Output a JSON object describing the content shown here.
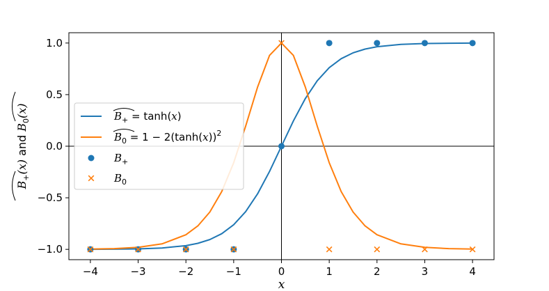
{
  "chart_data": {
    "type": "line",
    "xlabel": "x",
    "ylabel": "B_+(x) and B_0(x)",
    "ylabel_parts": {
      "a": "B",
      "a_sub": "+",
      "a_arg": "(x)",
      "mid": " and ",
      "b": "B",
      "b_sub": "0",
      "b_arg": "(x)"
    },
    "xlim": [
      -4.45,
      4.45
    ],
    "ylim": [
      -1.1,
      1.1
    ],
    "xticks": [
      -4,
      -3,
      -2,
      -1,
      0,
      1,
      2,
      3,
      4
    ],
    "xtick_labels": [
      "−4",
      "−3",
      "−2",
      "−1",
      "0",
      "1",
      "2",
      "3",
      "4"
    ],
    "yticks": [
      -1.0,
      -0.5,
      0.0,
      0.5,
      1.0
    ],
    "ytick_labels": [
      "−1.0",
      "−0.5",
      "0.0",
      "0.5",
      "1.0"
    ],
    "grid": false,
    "reference_lines": {
      "x": 0,
      "y": 0
    },
    "legend_position": "center-left",
    "series": [
      {
        "name": "B_+ hat = tanh(x)",
        "kind": "line",
        "color": "#1f77b4",
        "legend": {
          "sym": "B",
          "sub": "+",
          "rhs": " = tanh(",
          "var": "x",
          "close": ")"
        },
        "x": [
          -4,
          -3.5,
          -3,
          -2.5,
          -2,
          -1.75,
          -1.5,
          -1.25,
          -1,
          -0.75,
          -0.5,
          -0.25,
          0,
          0.25,
          0.5,
          0.75,
          1,
          1.25,
          1.5,
          1.75,
          2,
          2.5,
          3,
          3.5,
          4
        ],
        "y": [
          -0.9993,
          -0.9982,
          -0.9951,
          -0.9866,
          -0.964,
          -0.9414,
          -0.9051,
          -0.8483,
          -0.7616,
          -0.6351,
          -0.4621,
          -0.2449,
          0.0,
          0.2449,
          0.4621,
          0.6351,
          0.7616,
          0.8483,
          0.9051,
          0.9414,
          0.964,
          0.9866,
          0.9951,
          0.9982,
          0.9993
        ]
      },
      {
        "name": "B_0 hat = 1 − 2(tanh(x))^2",
        "kind": "line",
        "color": "#ff7f0e",
        "legend": {
          "sym": "B",
          "sub": "0",
          "rhs": " = 1 − 2(tanh(",
          "var": "x",
          "close": "))",
          "sup": "2"
        },
        "x": [
          -4,
          -3.5,
          -3,
          -2.5,
          -2,
          -1.75,
          -1.5,
          -1.25,
          -1,
          -0.75,
          -0.5,
          -0.25,
          0,
          0.25,
          0.5,
          0.75,
          1,
          1.25,
          1.5,
          1.75,
          2,
          2.5,
          3,
          3.5,
          4
        ],
        "y": [
          -0.9973,
          -0.9927,
          -0.9805,
          -0.9468,
          -0.8586,
          -0.7725,
          -0.6384,
          -0.4393,
          -0.16,
          0.1933,
          0.5729,
          0.8801,
          1.0,
          0.8801,
          0.5729,
          0.1933,
          -0.16,
          -0.4393,
          -0.6384,
          -0.7725,
          -0.8586,
          -0.9468,
          -0.9805,
          -0.9927,
          -0.9973
        ]
      },
      {
        "name": "B_+",
        "kind": "scatter",
        "marker": "circle",
        "color": "#1f77b4",
        "legend": {
          "sym": "B",
          "sub": "+"
        },
        "x": [
          -4,
          -3,
          -2,
          -1,
          0,
          1,
          2,
          3,
          4
        ],
        "y": [
          -1,
          -1,
          -1,
          -1,
          0,
          1,
          1,
          1,
          1
        ]
      },
      {
        "name": "B_0",
        "kind": "scatter",
        "marker": "x",
        "color": "#ff7f0e",
        "legend": {
          "sym": "B",
          "sub": "0"
        },
        "x": [
          -4,
          -3,
          -2,
          -1,
          0,
          1,
          2,
          3,
          4
        ],
        "y": [
          -1,
          -1,
          -1,
          -1,
          1,
          -1,
          -1,
          -1,
          -1
        ]
      }
    ]
  }
}
